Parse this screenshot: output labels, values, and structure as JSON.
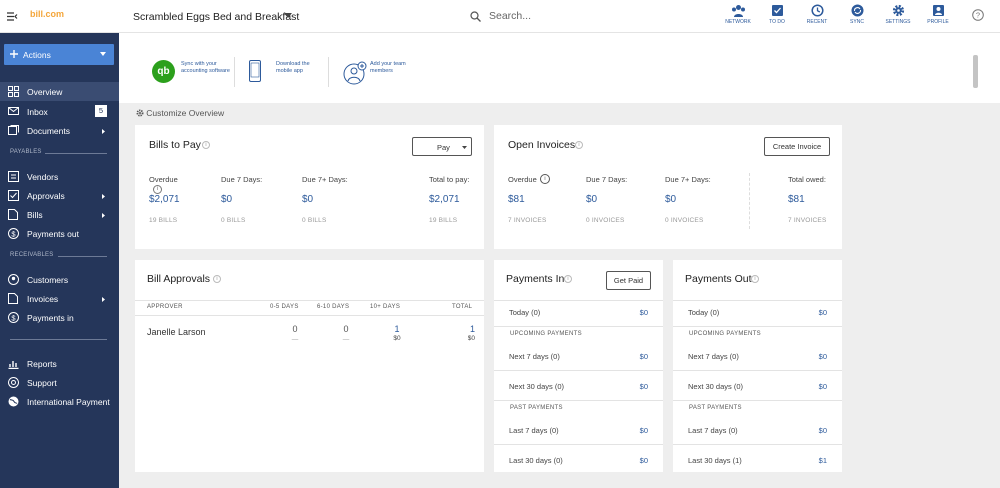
{
  "header": {
    "logo_text": "bill.com",
    "company": "Scrambled Eggs Bed and Breakfast",
    "search_placeholder": "Search...",
    "nav": [
      {
        "label": "NETWORK"
      },
      {
        "label": "TO DO"
      },
      {
        "label": "RECENT"
      },
      {
        "label": "SYNC"
      },
      {
        "label": "SETTINGS"
      },
      {
        "label": "PROFILE"
      }
    ]
  },
  "sidebar": {
    "actions_label": "Actions",
    "overview": "Overview",
    "inbox": "Inbox",
    "inbox_count": "5",
    "documents": "Documents",
    "payables_header": "PAYABLES",
    "vendors": "Vendors",
    "approvals": "Approvals",
    "bills": "Bills",
    "payments_out": "Payments out",
    "receivables_header": "RECEIVABLES",
    "customers": "Customers",
    "invoices": "Invoices",
    "payments_in": "Payments in",
    "reports": "Reports",
    "support": "Support",
    "international": "International Payment"
  },
  "banner": {
    "sync": "Sync with your accounting software",
    "mobile": "Download the mobile app",
    "team": "Add your team members"
  },
  "customize": "Customize Overview",
  "bills_to_pay": {
    "title": "Bills to Pay",
    "pay_select": "Pay",
    "cols": [
      {
        "label": "Overdue",
        "amount": "$2,071",
        "count": "19 BILLS"
      },
      {
        "label": "Due 7 Days:",
        "amount": "$0",
        "count": "0 BILLS"
      },
      {
        "label": "Due 7+ Days:",
        "amount": "$0",
        "count": "0 BILLS"
      },
      {
        "label": "Total to pay:",
        "amount": "$2,071",
        "count": "19 BILLS"
      }
    ]
  },
  "open_invoices": {
    "title": "Open Invoices",
    "create_button": "Create Invoice",
    "cols": [
      {
        "label": "Overdue",
        "amount": "$81",
        "count": "7 INVOICES"
      },
      {
        "label": "Due 7 Days:",
        "amount": "$0",
        "count": "0 INVOICES"
      },
      {
        "label": "Due 7+ Days:",
        "amount": "$0",
        "count": "0 INVOICES"
      },
      {
        "label": "Total owed:",
        "amount": "$81",
        "count": "7 INVOICES"
      }
    ]
  },
  "bill_approvals": {
    "title": "Bill Approvals",
    "headers": {
      "approver": "APPROVER",
      "d05": "0-5 DAYS",
      "d610": "6-10 DAYS",
      "d10": "10+ DAYS",
      "total": "TOTAL"
    },
    "row": {
      "name": "Janelle Larson",
      "d05": "0",
      "d05_sub": "—",
      "d610": "0",
      "d610_sub": "—",
      "d10": "1",
      "d10_sub": "$0",
      "total": "1",
      "total_sub": "$0"
    }
  },
  "payments_in": {
    "title": "Payments In",
    "button": "Get Paid",
    "today": {
      "label": "Today (0)",
      "value": "$0"
    },
    "upcoming_header": "UPCOMING PAYMENTS",
    "next7": {
      "label": "Next 7 days (0)",
      "value": "$0"
    },
    "next30": {
      "label": "Next 30 days (0)",
      "value": "$0"
    },
    "past_header": "PAST PAYMENTS",
    "last7": {
      "label": "Last 7 days (0)",
      "value": "$0"
    },
    "last30": {
      "label": "Last 30 days (0)",
      "value": "$0"
    }
  },
  "payments_out": {
    "title": "Payments Out",
    "today": {
      "label": "Today (0)",
      "value": "$0"
    },
    "upcoming_header": "UPCOMING PAYMENTS",
    "next7": {
      "label": "Next 7 days (0)",
      "value": "$0"
    },
    "next30": {
      "label": "Next 30 days (0)",
      "value": "$0"
    },
    "past_header": "PAST PAYMENTS",
    "last7": {
      "label": "Last 7 days (0)",
      "value": "$0"
    },
    "last30": {
      "label": "Last 30 days (1)",
      "value": "$1"
    }
  },
  "colors": {
    "sidebar": "#25365a",
    "actions": "#4a84d6",
    "link": "#2d5a9b",
    "accent": "#f4a63b"
  }
}
